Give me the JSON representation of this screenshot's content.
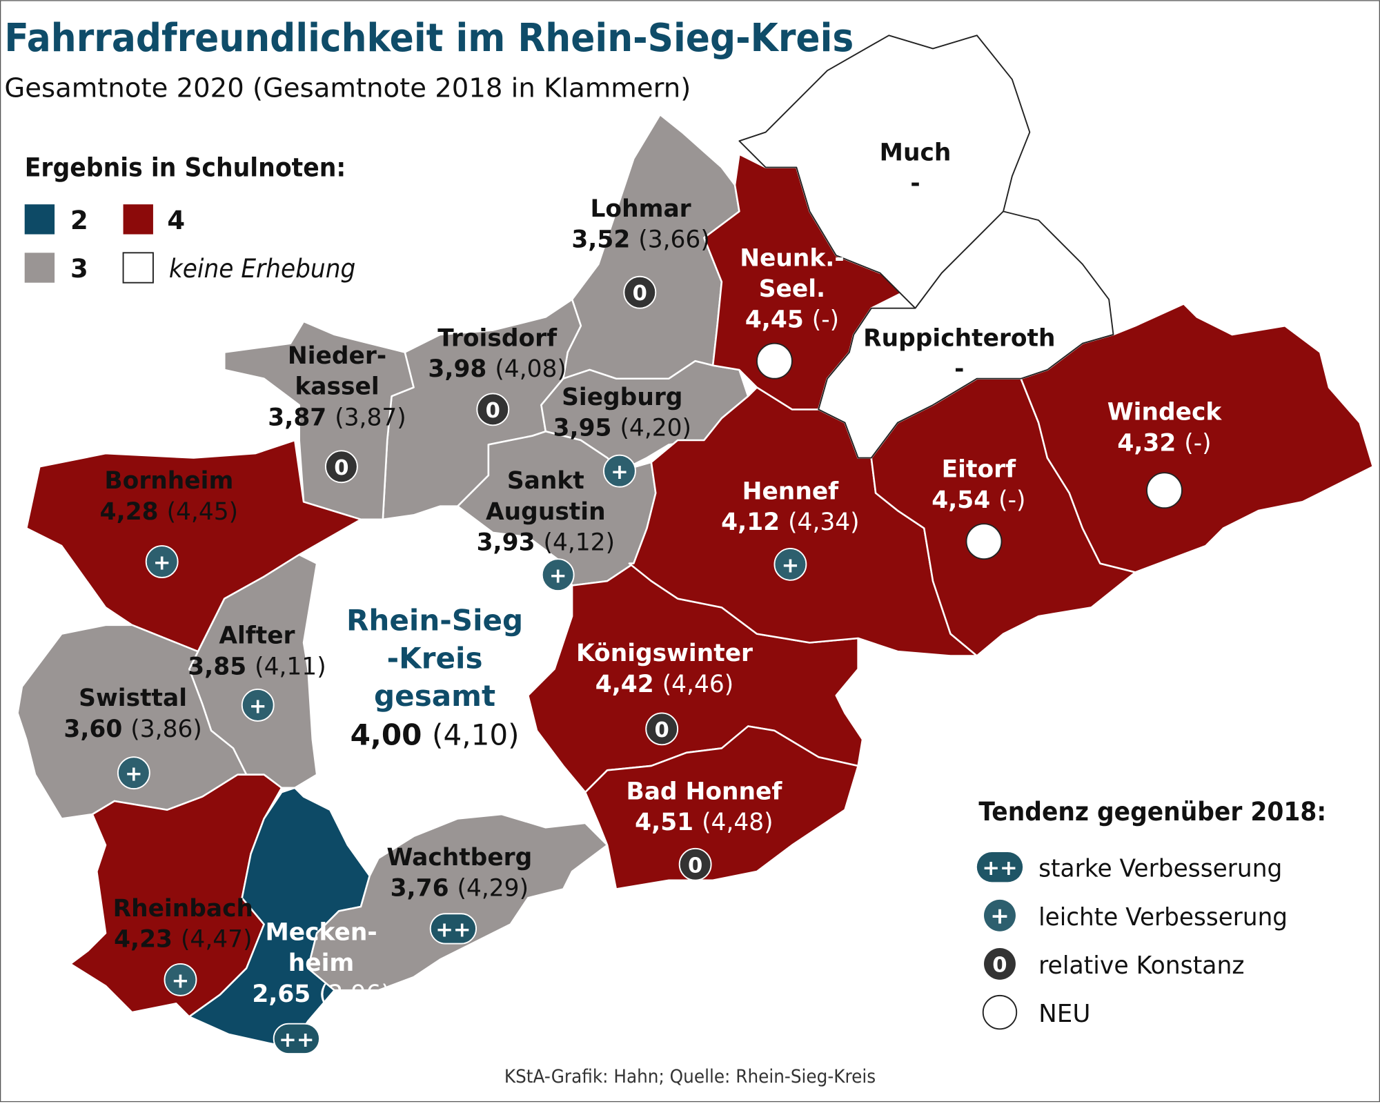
{
  "header": {
    "title": "Fahrradfreundlichkeit im Rhein-Sieg-Kreis",
    "subtitle": "Gesamtnote 2020 (Gesamtnote 2018 in Klammern)"
  },
  "grade_legend": {
    "title": "Ergebnis in Schulnoten:",
    "items": [
      "2",
      "4",
      "3",
      "keine Erhebung"
    ]
  },
  "trend_legend": {
    "title": "Tendenz gegenüber 2018:",
    "items": [
      {
        "symbol": "++",
        "label": "starke Verbesserung"
      },
      {
        "symbol": "+",
        "label": "leichte Verbesserung"
      },
      {
        "symbol": "0",
        "label": "relative Konstanz"
      },
      {
        "label": "NEU"
      }
    ]
  },
  "regions": [
    {
      "name": [
        "Lohmar"
      ],
      "score": "3,52",
      "previous": "(3,66)",
      "marker": "0"
    },
    {
      "name": [
        "Troisdorf"
      ],
      "score": "3,98",
      "previous": "(4,08)",
      "marker": "0"
    },
    {
      "name": [
        "Nieder-",
        "kassel"
      ],
      "score": "3,87",
      "previous": "(3,87)",
      "marker": "0"
    },
    {
      "name": [
        "Siegburg"
      ],
      "score": "3,95",
      "previous": "(4,20)",
      "marker": "+"
    },
    {
      "name": [
        "Sankt",
        "Augustin"
      ],
      "score": "3,93",
      "previous": "(4,12)",
      "marker": "+"
    },
    {
      "name": [
        "Bornheim"
      ],
      "score": "4,28",
      "previous": "(4,45)",
      "marker": "+"
    },
    {
      "name": [
        "Alfter"
      ],
      "score": "3,85",
      "previous": "(4,11)",
      "marker": "+"
    },
    {
      "name": [
        "Swisttal"
      ],
      "score": "3,60",
      "previous": "(3,86)",
      "marker": "+"
    },
    {
      "name": [
        "Rheinbach"
      ],
      "score": "4,23",
      "previous": "(4,47)",
      "marker": "+"
    },
    {
      "name": [
        "Mecken-",
        "heim"
      ],
      "score": "2,65",
      "previous": "(2,96)",
      "marker": "++"
    },
    {
      "name": [
        "Wachtberg"
      ],
      "score": "3,76",
      "previous": "(4,29)",
      "marker": "++"
    },
    {
      "name": [
        "Königswinter"
      ],
      "score": "4,42",
      "previous": "(4,46)",
      "marker": "0"
    },
    {
      "name": [
        "Bad Honnef"
      ],
      "score": "4,51",
      "previous": "(4,48)",
      "marker": "0"
    },
    {
      "name": [
        "Hennef"
      ],
      "score": "4,12",
      "previous": "(4,34)",
      "marker": "+"
    },
    {
      "name": [
        "Eitorf"
      ],
      "score": "4,54",
      "previous": "(-)"
    },
    {
      "name": [
        "Windeck"
      ],
      "score": "4,32",
      "previous": "(-)"
    },
    {
      "name": [
        "Neunk.-",
        "Seel."
      ],
      "score": "4,45",
      "previous": "(-)"
    },
    {
      "name": [
        "Much"
      ],
      "score": "-"
    },
    {
      "name": [
        "Ruppichteroth"
      ],
      "score": "-"
    }
  ],
  "total": {
    "name": [
      "Rhein-Sieg",
      "-Kreis",
      "gesamt"
    ],
    "score": "4,00",
    "previous": "(4,10)"
  },
  "source": "KStA-Grafik: Hahn; Quelle: Rhein-Sieg-Kreis"
}
